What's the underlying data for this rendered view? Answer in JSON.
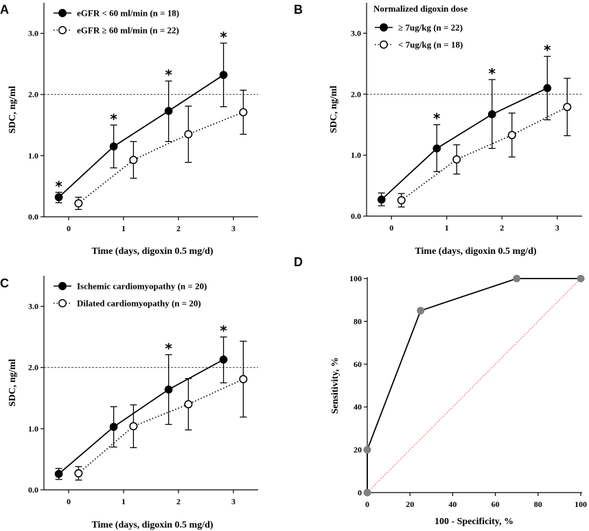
{
  "chart_data": [
    {
      "type": "line",
      "panel": "A",
      "xlabel": "Time (days, digoxin 0.5 mg/d)",
      "ylabel": "SDC, ng/ml",
      "ylim": [
        0,
        3.5
      ],
      "xlim": [
        -0.45,
        3.45
      ],
      "x_ticks": [
        0,
        1,
        2,
        3
      ],
      "y_ticks": [
        0.0,
        1.0,
        2.0,
        3.0
      ],
      "y_tick_labels": [
        "0.0",
        "1.0",
        "2.0",
        "3.0"
      ],
      "reference_line": 2.0,
      "legend_title": "",
      "series": [
        {
          "name": "eGFR < 60 ml/min (n = 18)",
          "marker": "filled",
          "style": "solid",
          "x": [
            -0.18,
            0.82,
            1.82,
            2.82
          ],
          "values": [
            0.32,
            1.15,
            1.73,
            2.32
          ],
          "err_low": [
            0.23,
            0.8,
            1.23,
            1.8
          ],
          "err_high": [
            0.4,
            1.5,
            2.22,
            2.84
          ]
        },
        {
          "name": "eGFR ≥ 60 ml/min (n = 22)",
          "marker": "open",
          "style": "dotted",
          "x": [
            0.18,
            1.18,
            2.18,
            3.18
          ],
          "values": [
            0.22,
            0.93,
            1.35,
            1.71
          ],
          "err_low": [
            0.12,
            0.63,
            0.89,
            1.35
          ],
          "err_high": [
            0.32,
            1.23,
            1.81,
            2.07
          ]
        }
      ],
      "stars": [
        {
          "x": -0.18,
          "y": 0.4
        },
        {
          "x": 0.82,
          "y": 1.5
        },
        {
          "x": 1.82,
          "y": 2.22
        },
        {
          "x": 2.82,
          "y": 2.84
        }
      ],
      "star_text": "*"
    },
    {
      "type": "line",
      "panel": "B",
      "xlabel": "Time (days, digoxin 0.5 mg/d)",
      "ylabel": "SDC, ng/ml",
      "ylim": [
        0,
        3.5
      ],
      "xlim": [
        -0.45,
        3.45
      ],
      "x_ticks": [
        0,
        1,
        2,
        3
      ],
      "y_ticks": [
        0.0,
        1.0,
        2.0,
        3.0
      ],
      "y_tick_labels": [
        "0.0",
        "1.0",
        "2.0",
        "3.0"
      ],
      "reference_line": 2.0,
      "legend_title": "Normalized digoxin dose",
      "series": [
        {
          "name": "≥ 7ug/kg (n = 22)",
          "marker": "filled",
          "style": "solid",
          "x": [
            -0.18,
            0.82,
            1.82,
            2.82
          ],
          "values": [
            0.27,
            1.11,
            1.67,
            2.1
          ],
          "err_low": [
            0.17,
            0.73,
            1.11,
            1.58
          ],
          "err_high": [
            0.38,
            1.5,
            2.24,
            2.62
          ]
        },
        {
          "name": "< 7ug/kg (n = 18)",
          "marker": "open",
          "style": "dotted",
          "x": [
            0.18,
            1.18,
            2.18,
            3.18
          ],
          "values": [
            0.26,
            0.93,
            1.33,
            1.79
          ],
          "err_low": [
            0.15,
            0.69,
            0.97,
            1.32
          ],
          "err_high": [
            0.37,
            1.17,
            1.69,
            2.26
          ]
        }
      ],
      "stars": [
        {
          "x": 0.82,
          "y": 1.5
        },
        {
          "x": 1.82,
          "y": 2.24
        },
        {
          "x": 2.82,
          "y": 2.62
        }
      ],
      "star_text": "*"
    },
    {
      "type": "line",
      "panel": "C",
      "xlabel": "Time (days, digoxin 0.5 mg/d)",
      "ylabel": "SDC, ng/ml",
      "ylim": [
        0,
        3.5
      ],
      "xlim": [
        -0.45,
        3.45
      ],
      "x_ticks": [
        0,
        1,
        2,
        3
      ],
      "y_ticks": [
        0.0,
        1.0,
        2.0,
        3.0
      ],
      "y_tick_labels": [
        "0.0",
        "1.0",
        "2.0",
        "3.0"
      ],
      "reference_line": 2.0,
      "legend_title": "",
      "series": [
        {
          "name": "Ischemic cardiomyopathy (n = 20)",
          "marker": "filled",
          "style": "solid",
          "x": [
            -0.18,
            0.82,
            1.82,
            2.82
          ],
          "values": [
            0.26,
            1.03,
            1.64,
            2.13
          ],
          "err_low": [
            0.17,
            0.7,
            1.07,
            1.75
          ],
          "err_high": [
            0.35,
            1.36,
            2.21,
            2.5
          ]
        },
        {
          "name": "Dilated cardiomyopathy (n = 20)",
          "marker": "open",
          "style": "dotted",
          "x": [
            0.18,
            1.18,
            2.18,
            3.18
          ],
          "values": [
            0.27,
            1.04,
            1.4,
            1.81
          ],
          "err_low": [
            0.16,
            0.69,
            0.98,
            1.19
          ],
          "err_high": [
            0.38,
            1.39,
            1.82,
            2.43
          ]
        }
      ],
      "stars": [
        {
          "x": 1.82,
          "y": 2.21
        },
        {
          "x": 2.82,
          "y": 2.5
        }
      ],
      "star_text": "*"
    },
    {
      "type": "line",
      "panel": "D",
      "subtype": "roc",
      "xlabel": "100 - Specificity, %",
      "ylabel": "Sensitivity, %",
      "xlim": [
        0,
        100
      ],
      "ylim": [
        0,
        100
      ],
      "x_ticks": [
        0,
        20,
        40,
        60,
        80,
        100
      ],
      "y_ticks": [
        0,
        20,
        40,
        60,
        80,
        100
      ],
      "series": [
        {
          "name": "ROC",
          "x": [
            0,
            0,
            25,
            70,
            100
          ],
          "values": [
            0,
            20,
            85,
            100,
            100
          ]
        },
        {
          "name": "reference",
          "x": [
            0,
            100
          ],
          "values": [
            0,
            100
          ]
        }
      ]
    }
  ],
  "panel_labels": [
    "A",
    "B",
    "C",
    "D"
  ],
  "colors": {
    "line": "#000000",
    "roc_marker": "#808080",
    "diagonal": "#e05050"
  }
}
